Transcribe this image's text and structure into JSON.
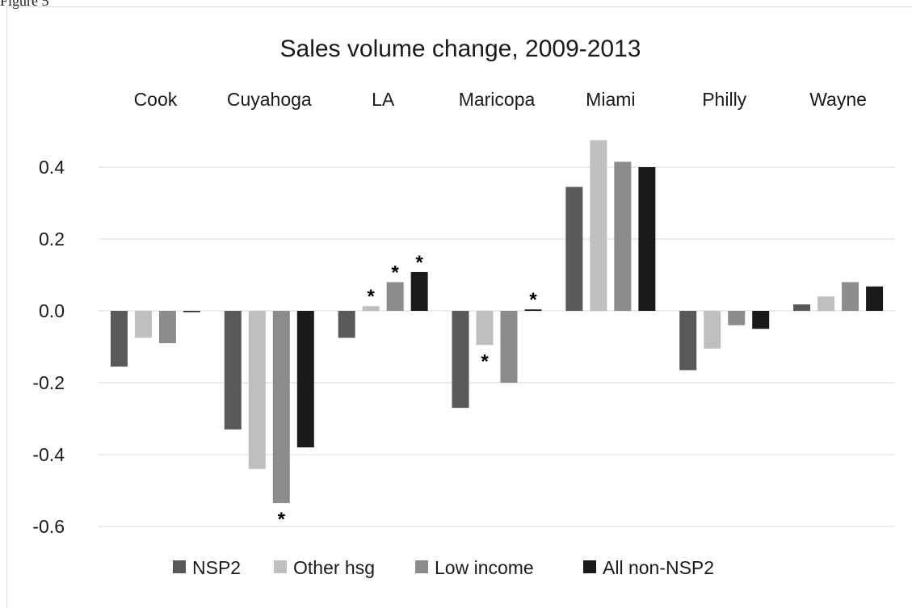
{
  "figure_label": "Figure 5",
  "chart_data": {
    "type": "bar",
    "title": "Sales volume change, 2009-2013",
    "xlabel": "",
    "ylabel": "",
    "categories": [
      "Cook",
      "Cuyahoga",
      "LA",
      "Maricopa",
      "Miami",
      "Philly",
      "Wayne"
    ],
    "series": [
      {
        "name": "NSP2",
        "color": "#595959",
        "values": [
          -0.155,
          -0.33,
          -0.075,
          -0.27,
          0.345,
          -0.165,
          0.018
        ],
        "significant": [
          false,
          false,
          false,
          false,
          false,
          false,
          false
        ]
      },
      {
        "name": "Other hsg",
        "color": "#bfbfbf",
        "values": [
          -0.075,
          -0.44,
          0.013,
          -0.095,
          0.475,
          -0.105,
          0.04
        ],
        "significant": [
          false,
          false,
          true,
          true,
          false,
          false,
          false
        ]
      },
      {
        "name": "Low income",
        "color": "#8c8c8c",
        "values": [
          -0.09,
          -0.535,
          0.08,
          -0.2,
          0.415,
          -0.04,
          0.08
        ],
        "significant": [
          false,
          true,
          true,
          false,
          false,
          false,
          false
        ]
      },
      {
        "name": "All non-NSP2",
        "color": "#1a1a1a",
        "values": [
          -0.003,
          -0.38,
          0.108,
          0.004,
          0.4,
          -0.05,
          0.068
        ],
        "significant": [
          false,
          false,
          true,
          true,
          false,
          false,
          false
        ]
      }
    ],
    "significance_marker": "*",
    "ylim": [
      -0.65,
      0.45
    ],
    "yticks": [
      -0.6,
      -0.4,
      -0.2,
      0.0,
      0.2,
      0.4
    ],
    "ytick_labels": [
      "-0.6",
      "-0.4",
      "-0.2",
      "0.0",
      "0.2",
      "0.4"
    ],
    "category_labels_position": "top",
    "grid": true,
    "legend_position": "bottom"
  }
}
